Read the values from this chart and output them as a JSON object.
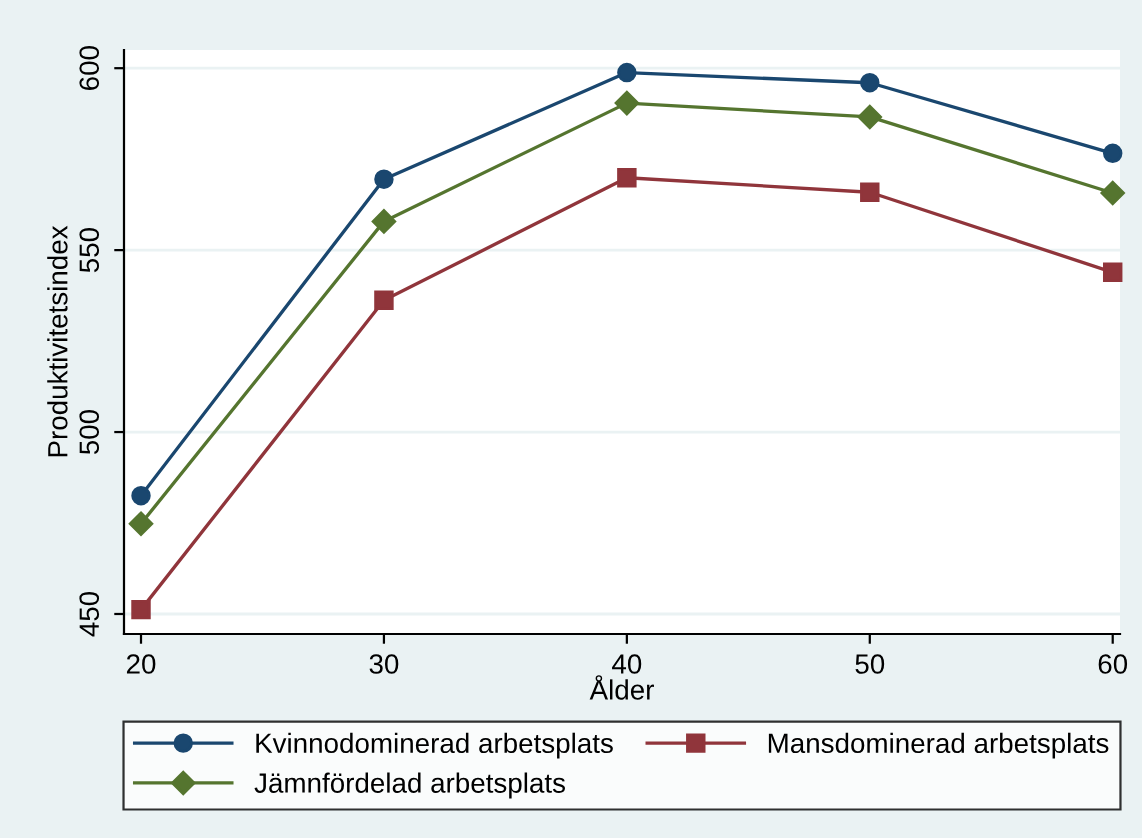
{
  "chart_data": {
    "type": "line",
    "xlabel": "Ålder",
    "ylabel": "Produktivitetsindex",
    "x": [
      20,
      30,
      40,
      50,
      60
    ],
    "series": [
      {
        "name": "Kvinnodominerad arbetsplats",
        "color": "#1a476f",
        "marker": "circle",
        "values": [
          482.5,
          569.5,
          598.8,
          596,
          576.6
        ]
      },
      {
        "name": "Mansdominerad arbetsplats",
        "color": "#90353b",
        "marker": "square",
        "values": [
          451.2,
          536.2,
          569.9,
          565.9,
          543.9
        ]
      },
      {
        "name": "Jämnfördelad arbetsplats",
        "color": "#55752f",
        "marker": "diamond",
        "values": [
          474.8,
          557.9,
          590.4,
          586.6,
          565.7
        ]
      }
    ],
    "xlim": [
      19.3,
      60.3
    ],
    "ylim": [
      444.5,
      605
    ],
    "xticks": [
      20,
      30,
      40,
      50,
      60
    ],
    "yticks": [
      450,
      500,
      550,
      600
    ],
    "grid": "y",
    "legend": "bottom"
  }
}
